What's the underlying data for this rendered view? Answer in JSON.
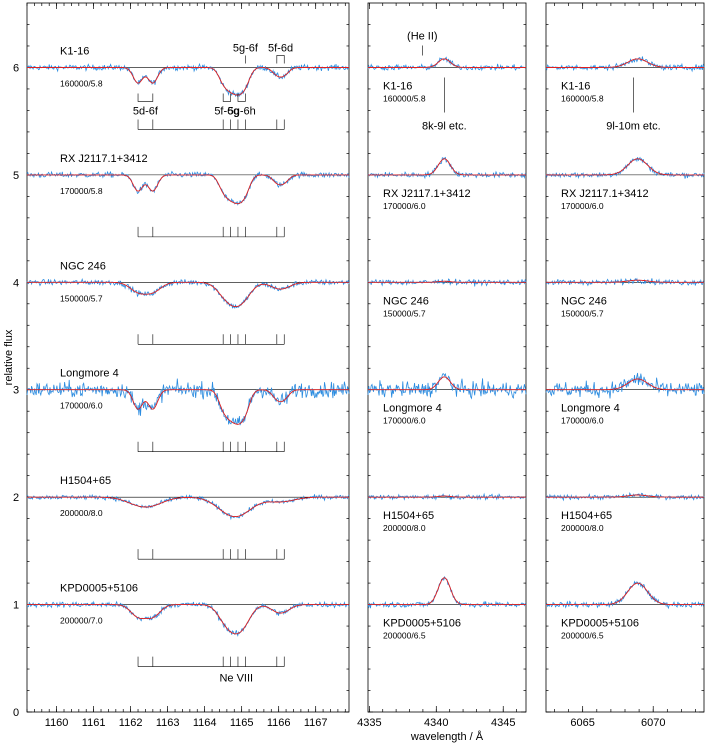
{
  "chart_data": {
    "type": "line",
    "ylabel": "relative flux",
    "xlabel": "wavelength / Å",
    "ylim": [
      0,
      6.6
    ],
    "yticks": [
      0,
      1,
      2,
      3,
      4,
      5,
      6
    ],
    "colors": {
      "observed": "#2b8ce0",
      "model": "#e01f1f"
    },
    "panels": [
      {
        "xlim": [
          1159.2,
          1167.9
        ],
        "xticks": [
          1160,
          1161,
          1162,
          1163,
          1164,
          1165,
          1166,
          1167
        ]
      },
      {
        "xlim": [
          4334.9,
          4346.7
        ],
        "xticks": [
          4335,
          4340,
          4345
        ]
      },
      {
        "xlim": [
          6062.4,
          6073.6
        ],
        "xticks": [
          6065,
          6070
        ]
      }
    ],
    "stars": [
      {
        "name": "K1-16",
        "offset": 6,
        "params": [
          "160000/5.8",
          "160000/5.8",
          "160000/5.8"
        ],
        "emission": [
          0.08,
          0.08
        ],
        "noise": 0.025
      },
      {
        "name": "RX J2117.1+3412",
        "offset": 5,
        "params": [
          "170000/5.8",
          "170000/6.0",
          "170000/6.0"
        ],
        "emission": [
          0.15,
          0.15
        ],
        "noise": 0.025
      },
      {
        "name": "NGC 246",
        "offset": 4,
        "params": [
          "150000/5.7",
          "150000/5.7",
          "150000/5.7"
        ],
        "emission": [
          0.01,
          0.02
        ],
        "noise": 0.025
      },
      {
        "name": "Longmore 4",
        "offset": 3,
        "params": [
          "170000/6.0",
          "170000/6.0",
          "170000/6.0"
        ],
        "emission": [
          0.12,
          0.1
        ],
        "noise": 0.07
      },
      {
        "name": "H1504+65",
        "offset": 2,
        "params": [
          "200000/8.0",
          "200000/8.0",
          "200000/8.0"
        ],
        "emission": [
          0.01,
          0.02
        ],
        "noise": 0.02
      },
      {
        "name": "KPD0005+5106",
        "offset": 1,
        "params": [
          "200000/7.0",
          "200000/6.5",
          "200000/6.5"
        ],
        "emission": [
          0.25,
          0.2
        ],
        "noise": 0.025
      }
    ],
    "ne8_lines": [
      1162.2,
      1162.6,
      1164.5,
      1164.7,
      1164.9,
      1165.1,
      1165.95,
      1166.15
    ],
    "ne8_label": "Ne VIII",
    "transitions": [
      {
        "label": "5d-6f",
        "wl": [
          1162.2,
          1162.6
        ]
      },
      {
        "label": "5f-6g",
        "wl": [
          1164.5,
          1164.7
        ]
      },
      {
        "label": "5g-6h",
        "wl": [
          1164.9,
          1165.1
        ]
      },
      {
        "label": "5g-6f",
        "wl": [
          1165.1
        ]
      },
      {
        "label": "5f-6d",
        "wl": [
          1165.95,
          1166.15
        ]
      }
    ],
    "heii_label": "(He II)",
    "annot_mid": "8k-9l etc.",
    "annot_right": "9l-10m etc."
  }
}
